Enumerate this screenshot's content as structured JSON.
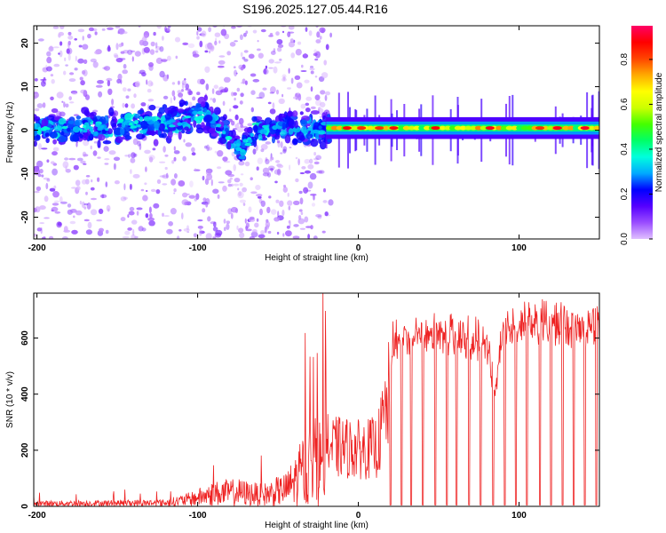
{
  "title": "S196.2025.127.05.44.R16",
  "chart_data": [
    {
      "type": "heatmap",
      "xlabel": "Height of straight line (km)",
      "ylabel": "Frequency (Hz)",
      "xlim": [
        -202,
        150
      ],
      "ylim": [
        -25,
        24
      ],
      "xticks": [
        -200,
        -100,
        0,
        100
      ],
      "yticks": [
        -20,
        -10,
        0,
        10,
        20
      ],
      "grid": false,
      "colorbar": {
        "label": "Normalized spectral amplitude",
        "range": [
          0,
          0.95
        ],
        "ticks": [
          0.0,
          0.2,
          0.4,
          0.6,
          0.8
        ],
        "colormap": [
          "#e0c0ff",
          "#9a4dff",
          "#5500ff",
          "#0000ff",
          "#00aaff",
          "#00ffdd",
          "#00ff66",
          "#44ff00",
          "#ccff00",
          "#ffff00",
          "#ffaa00",
          "#ff4400",
          "#ff0000",
          "#ff0066"
        ]
      },
      "ridge": [
        {
          "x": -200,
          "y": 0
        },
        {
          "x": -150,
          "y": 1
        },
        {
          "x": -110,
          "y": 2
        },
        {
          "x": -97,
          "y": 4
        },
        {
          "x": -85,
          "y": 0
        },
        {
          "x": -72,
          "y": -5
        },
        {
          "x": -65,
          "y": 0
        },
        {
          "x": -50,
          "y": 1
        },
        {
          "x": -20,
          "y": 0
        },
        {
          "x": 0,
          "y": 0.5
        },
        {
          "x": 150,
          "y": 0.5
        }
      ]
    },
    {
      "type": "line",
      "xlabel": "Height of straight line (km)",
      "ylabel": "SNR (10 * v/v)",
      "xlim": [
        -202,
        150
      ],
      "ylim": [
        0,
        760
      ],
      "xticks": [
        -200,
        -100,
        0,
        100
      ],
      "yticks": [
        0,
        200,
        400,
        600
      ],
      "grid": false,
      "line_color": "#ee2222",
      "envelope": [
        {
          "x": -200,
          "y": 20
        },
        {
          "x": -120,
          "y": 25
        },
        {
          "x": -105,
          "y": 50
        },
        {
          "x": -90,
          "y": 90
        },
        {
          "x": -75,
          "y": 100
        },
        {
          "x": -60,
          "y": 80
        },
        {
          "x": -45,
          "y": 120
        },
        {
          "x": -38,
          "y": 200
        },
        {
          "x": -28,
          "y": 350
        },
        {
          "x": -18,
          "y": 280
        },
        {
          "x": -10,
          "y": 280
        },
        {
          "x": 0,
          "y": 270
        },
        {
          "x": 12,
          "y": 280
        },
        {
          "x": 22,
          "y": 620
        },
        {
          "x": 40,
          "y": 620
        },
        {
          "x": 60,
          "y": 640
        },
        {
          "x": 80,
          "y": 600
        },
        {
          "x": 85,
          "y": 430
        },
        {
          "x": 90,
          "y": 650
        },
        {
          "x": 110,
          "y": 680
        },
        {
          "x": 130,
          "y": 670
        },
        {
          "x": 150,
          "y": 660
        }
      ],
      "dips_x": [
        20,
        27,
        33,
        40,
        48,
        55,
        61,
        69,
        76,
        84,
        91,
        98,
        105,
        113,
        120,
        127,
        134,
        141,
        148
      ],
      "dip_value": 5
    }
  ]
}
